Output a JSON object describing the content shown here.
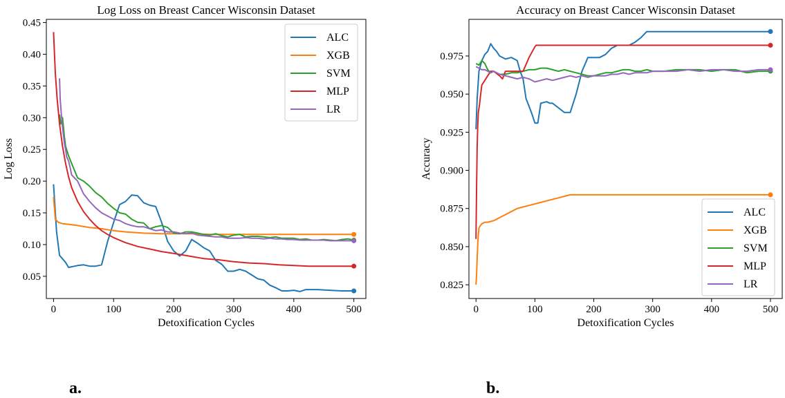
{
  "chart_data": [
    {
      "type": "line",
      "panel_label": "a.",
      "title": "Log Loss on Breast Cancer Wisconsin Dataset",
      "xlabel": "Detoxification Cycles",
      "ylabel": "Log Loss",
      "xlim": [
        -12,
        520
      ],
      "ylim": [
        0.015,
        0.455
      ],
      "xticks": [
        0,
        100,
        200,
        300,
        400,
        500
      ],
      "yticks": [
        0.05,
        0.1,
        0.15,
        0.2,
        0.25,
        0.3,
        0.35,
        0.4,
        0.45
      ],
      "ytick_decimals": 2,
      "legend_position": "upper right",
      "series": [
        {
          "name": "ALC",
          "color": "#1f77b4",
          "x": [
            0,
            5,
            10,
            20,
            25,
            30,
            40,
            50,
            60,
            70,
            80,
            90,
            100,
            110,
            120,
            130,
            140,
            150,
            160,
            170,
            180,
            190,
            200,
            210,
            220,
            230,
            240,
            250,
            260,
            270,
            280,
            290,
            300,
            310,
            320,
            330,
            340,
            350,
            360,
            370,
            380,
            390,
            400,
            410,
            420,
            440,
            460,
            480,
            500
          ],
          "y": [
            0.195,
            0.12,
            0.083,
            0.072,
            0.064,
            0.065,
            0.067,
            0.068,
            0.066,
            0.066,
            0.068,
            0.105,
            0.135,
            0.163,
            0.168,
            0.178,
            0.177,
            0.166,
            0.162,
            0.16,
            0.135,
            0.105,
            0.09,
            0.082,
            0.09,
            0.108,
            0.102,
            0.095,
            0.09,
            0.075,
            0.069,
            0.058,
            0.058,
            0.061,
            0.058,
            0.052,
            0.046,
            0.044,
            0.036,
            0.032,
            0.027,
            0.027,
            0.028,
            0.026,
            0.029,
            0.029,
            0.028,
            0.027,
            0.027
          ]
        },
        {
          "name": "XGB",
          "color": "#ff7f0e",
          "x": [
            0,
            3,
            8,
            15,
            25,
            40,
            60,
            80,
            100,
            120,
            150,
            180,
            200,
            230,
            260,
            300,
            350,
            400,
            450,
            500
          ],
          "y": [
            0.175,
            0.14,
            0.135,
            0.133,
            0.132,
            0.13,
            0.127,
            0.125,
            0.122,
            0.12,
            0.118,
            0.117,
            0.117,
            0.117,
            0.116,
            0.116,
            0.116,
            0.116,
            0.116,
            0.116
          ]
        },
        {
          "name": "SVM",
          "color": "#2ca02c",
          "x": [
            10,
            12,
            15,
            18,
            20,
            25,
            30,
            40,
            50,
            60,
            70,
            80,
            90,
            100,
            110,
            120,
            130,
            140,
            150,
            160,
            170,
            180,
            190,
            200,
            210,
            220,
            230,
            240,
            250,
            260,
            270,
            280,
            290,
            300,
            310,
            320,
            330,
            340,
            350,
            360,
            370,
            380,
            390,
            400,
            410,
            420,
            430,
            440,
            450,
            460,
            470,
            480,
            490,
            500
          ],
          "y": [
            0.305,
            0.29,
            0.3,
            0.27,
            0.255,
            0.24,
            0.228,
            0.205,
            0.2,
            0.192,
            0.182,
            0.175,
            0.165,
            0.157,
            0.15,
            0.148,
            0.14,
            0.135,
            0.134,
            0.125,
            0.128,
            0.13,
            0.127,
            0.118,
            0.117,
            0.12,
            0.12,
            0.118,
            0.116,
            0.115,
            0.117,
            0.114,
            0.112,
            0.115,
            0.116,
            0.112,
            0.113,
            0.113,
            0.112,
            0.111,
            0.112,
            0.11,
            0.11,
            0.11,
            0.108,
            0.109,
            0.107,
            0.107,
            0.108,
            0.107,
            0.106,
            0.108,
            0.109,
            0.107
          ]
        },
        {
          "name": "MLP",
          "color": "#d62728",
          "x": [
            0,
            3,
            6,
            10,
            15,
            20,
            25,
            30,
            40,
            50,
            60,
            70,
            80,
            90,
            100,
            120,
            140,
            160,
            180,
            200,
            225,
            250,
            275,
            300,
            325,
            350,
            375,
            400,
            425,
            450,
            475,
            500
          ],
          "y": [
            0.435,
            0.37,
            0.33,
            0.29,
            0.255,
            0.228,
            0.207,
            0.19,
            0.168,
            0.152,
            0.14,
            0.13,
            0.122,
            0.116,
            0.111,
            0.103,
            0.097,
            0.093,
            0.089,
            0.086,
            0.082,
            0.078,
            0.076,
            0.073,
            0.071,
            0.07,
            0.068,
            0.067,
            0.066,
            0.066,
            0.066,
            0.066
          ]
        },
        {
          "name": "LR",
          "color": "#9467bd",
          "x": [
            10,
            11,
            13,
            15,
            18,
            20,
            22,
            25,
            28,
            30,
            35,
            40,
            45,
            50,
            60,
            70,
            80,
            90,
            100,
            110,
            120,
            130,
            140,
            150,
            160,
            170,
            180,
            190,
            200,
            210,
            220,
            230,
            240,
            250,
            260,
            270,
            280,
            290,
            300,
            310,
            320,
            330,
            340,
            350,
            360,
            370,
            380,
            390,
            400,
            410,
            420,
            430,
            440,
            450,
            460,
            470,
            480,
            490,
            500
          ],
          "y": [
            0.362,
            0.33,
            0.305,
            0.285,
            0.26,
            0.25,
            0.238,
            0.232,
            0.22,
            0.21,
            0.205,
            0.2,
            0.19,
            0.18,
            0.168,
            0.158,
            0.15,
            0.145,
            0.14,
            0.138,
            0.133,
            0.13,
            0.128,
            0.128,
            0.125,
            0.122,
            0.123,
            0.12,
            0.12,
            0.118,
            0.117,
            0.118,
            0.115,
            0.114,
            0.113,
            0.112,
            0.112,
            0.11,
            0.11,
            0.11,
            0.111,
            0.11,
            0.11,
            0.109,
            0.11,
            0.109,
            0.109,
            0.108,
            0.108,
            0.107,
            0.107,
            0.107,
            0.107,
            0.107,
            0.106,
            0.106,
            0.106,
            0.106,
            0.106
          ]
        }
      ]
    },
    {
      "type": "line",
      "panel_label": "b.",
      "title": "Accuracy on Breast Cancer Wisconsin Dataset",
      "xlabel": "Detoxification Cycles",
      "ylabel": "Accuracy",
      "xlim": [
        -12,
        520
      ],
      "ylim": [
        0.816,
        0.999
      ],
      "xticks": [
        0,
        100,
        200,
        300,
        400,
        500
      ],
      "yticks": [
        0.825,
        0.85,
        0.875,
        0.9,
        0.925,
        0.95,
        0.975
      ],
      "ytick_decimals": 3,
      "legend_position": "lower right",
      "series": [
        {
          "name": "ALC",
          "color": "#1f77b4",
          "x": [
            0,
            2,
            5,
            10,
            15,
            20,
            25,
            30,
            35,
            40,
            50,
            60,
            70,
            75,
            80,
            85,
            90,
            95,
            100,
            105,
            110,
            120,
            125,
            130,
            140,
            150,
            160,
            170,
            180,
            190,
            200,
            210,
            220,
            230,
            240,
            250,
            260,
            270,
            280,
            290,
            300,
            400,
            500
          ],
          "y": [
            0.927,
            0.947,
            0.965,
            0.972,
            0.976,
            0.978,
            0.983,
            0.98,
            0.978,
            0.975,
            0.973,
            0.974,
            0.972,
            0.965,
            0.96,
            0.947,
            0.942,
            0.937,
            0.931,
            0.931,
            0.944,
            0.945,
            0.944,
            0.944,
            0.941,
            0.938,
            0.938,
            0.95,
            0.965,
            0.974,
            0.974,
            0.974,
            0.976,
            0.98,
            0.982,
            0.982,
            0.982,
            0.984,
            0.987,
            0.991,
            0.991,
            0.991,
            0.991
          ]
        },
        {
          "name": "XGB",
          "color": "#ff7f0e",
          "x": [
            0,
            1,
            2,
            3,
            4,
            5,
            6,
            8,
            10,
            15,
            20,
            30,
            40,
            50,
            60,
            70,
            80,
            90,
            100,
            110,
            120,
            130,
            140,
            150,
            160,
            170,
            200,
            250,
            300,
            400,
            500
          ],
          "y": [
            0.825,
            0.832,
            0.842,
            0.852,
            0.858,
            0.862,
            0.863,
            0.864,
            0.865,
            0.866,
            0.866,
            0.867,
            0.869,
            0.871,
            0.873,
            0.875,
            0.876,
            0.877,
            0.878,
            0.879,
            0.88,
            0.881,
            0.882,
            0.883,
            0.884,
            0.884,
            0.884,
            0.884,
            0.884,
            0.884,
            0.884
          ]
        },
        {
          "name": "SVM",
          "color": "#2ca02c",
          "x": [
            0,
            5,
            10,
            15,
            20,
            25,
            30,
            40,
            50,
            60,
            70,
            80,
            90,
            100,
            110,
            120,
            130,
            140,
            150,
            160,
            170,
            180,
            190,
            200,
            210,
            220,
            230,
            240,
            250,
            260,
            270,
            280,
            290,
            300,
            320,
            340,
            360,
            380,
            400,
            420,
            440,
            460,
            480,
            500
          ],
          "y": [
            0.97,
            0.969,
            0.972,
            0.97,
            0.966,
            0.964,
            0.965,
            0.963,
            0.963,
            0.964,
            0.964,
            0.965,
            0.966,
            0.966,
            0.967,
            0.967,
            0.966,
            0.965,
            0.966,
            0.965,
            0.964,
            0.963,
            0.962,
            0.962,
            0.963,
            0.964,
            0.964,
            0.965,
            0.966,
            0.966,
            0.965,
            0.965,
            0.966,
            0.965,
            0.965,
            0.966,
            0.966,
            0.966,
            0.965,
            0.966,
            0.966,
            0.964,
            0.965,
            0.965
          ]
        },
        {
          "name": "MLP",
          "color": "#d62728",
          "x": [
            0,
            1,
            2,
            3,
            4,
            6,
            8,
            10,
            15,
            20,
            25,
            30,
            40,
            45,
            50,
            60,
            70,
            80,
            90,
            100,
            102,
            200,
            300,
            400,
            500
          ],
          "y": [
            0.855,
            0.89,
            0.915,
            0.93,
            0.938,
            0.943,
            0.95,
            0.956,
            0.959,
            0.962,
            0.965,
            0.965,
            0.962,
            0.96,
            0.965,
            0.965,
            0.965,
            0.965,
            0.974,
            0.981,
            0.982,
            0.982,
            0.982,
            0.982,
            0.982
          ]
        },
        {
          "name": "LR",
          "color": "#9467bd",
          "x": [
            0,
            5,
            10,
            15,
            20,
            25,
            30,
            40,
            50,
            60,
            70,
            80,
            90,
            100,
            110,
            120,
            130,
            140,
            150,
            160,
            170,
            180,
            190,
            200,
            210,
            220,
            230,
            240,
            250,
            260,
            270,
            280,
            290,
            300,
            320,
            340,
            360,
            380,
            400,
            420,
            440,
            460,
            480,
            500
          ],
          "y": [
            0.968,
            0.967,
            0.966,
            0.966,
            0.965,
            0.964,
            0.965,
            0.963,
            0.962,
            0.961,
            0.96,
            0.961,
            0.96,
            0.958,
            0.959,
            0.96,
            0.959,
            0.96,
            0.961,
            0.962,
            0.961,
            0.962,
            0.961,
            0.962,
            0.962,
            0.962,
            0.963,
            0.963,
            0.964,
            0.963,
            0.964,
            0.964,
            0.964,
            0.965,
            0.965,
            0.965,
            0.966,
            0.965,
            0.966,
            0.966,
            0.965,
            0.965,
            0.966,
            0.966
          ]
        }
      ]
    }
  ]
}
